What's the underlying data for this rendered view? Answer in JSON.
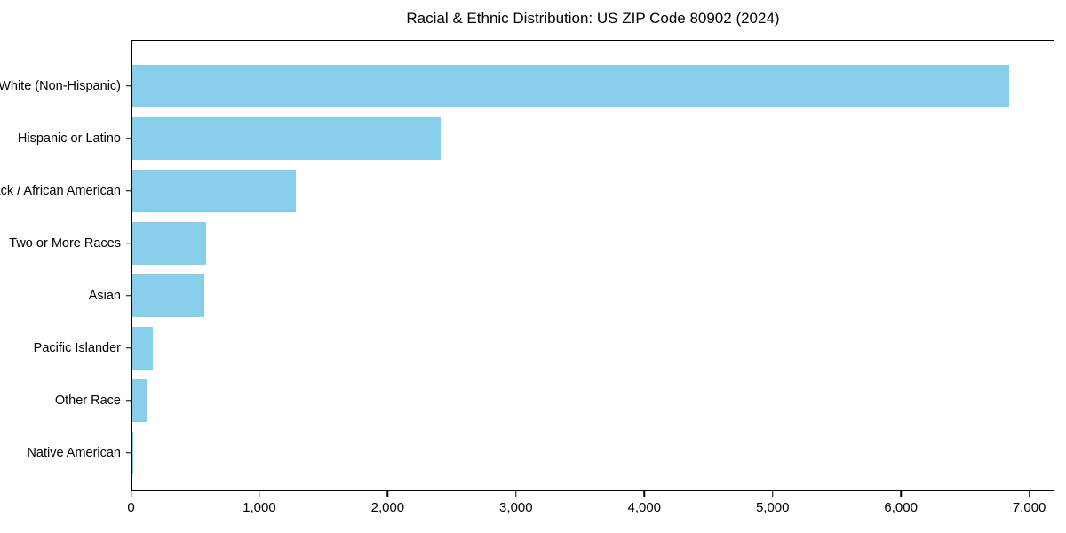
{
  "chart_data": {
    "type": "bar",
    "orientation": "horizontal",
    "title": "Racial & Ethnic Distribution: US ZIP Code 80902 (2024)",
    "categories": [
      "White (Non-Hispanic)",
      "Hispanic or Latino",
      "Black / African American",
      "Two or More Races",
      "Asian",
      "Pacific Islander",
      "Other Race",
      "Native American"
    ],
    "values": [
      6850,
      2410,
      1275,
      578,
      560,
      162,
      120,
      5
    ],
    "xlabel": "",
    "ylabel": "",
    "xlim": [
      0,
      7200
    ],
    "x_ticks": [
      0,
      1000,
      2000,
      3000,
      4000,
      5000,
      6000,
      7000
    ],
    "x_tick_labels": [
      "0",
      "1,000",
      "2,000",
      "3,000",
      "4,000",
      "5,000",
      "6,000",
      "7,000"
    ],
    "bar_color": "#87CEEB",
    "background_color": "#ffffff",
    "grid": false,
    "legend": null
  }
}
